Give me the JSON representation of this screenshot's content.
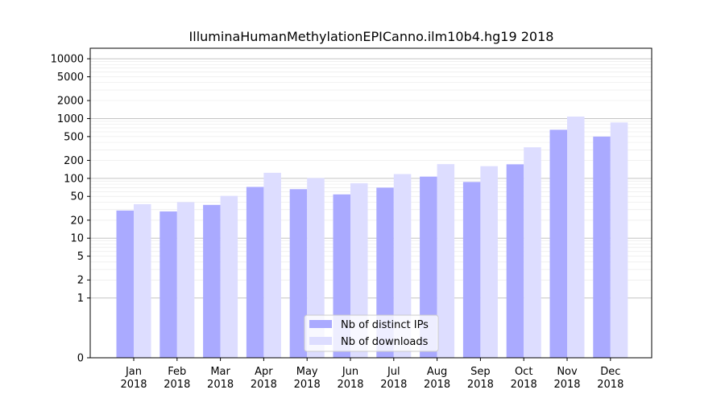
{
  "chart_data": {
    "type": "bar",
    "title": "IlluminaHumanMethylationEPICanno.ilm10b4.hg19 2018",
    "xlabel": "",
    "ylabel": "",
    "yscale": "symlog",
    "categories": [
      {
        "month": "Jan",
        "year": "2018"
      },
      {
        "month": "Feb",
        "year": "2018"
      },
      {
        "month": "Mar",
        "year": "2018"
      },
      {
        "month": "Apr",
        "year": "2018"
      },
      {
        "month": "May",
        "year": "2018"
      },
      {
        "month": "Jun",
        "year": "2018"
      },
      {
        "month": "Jul",
        "year": "2018"
      },
      {
        "month": "Aug",
        "year": "2018"
      },
      {
        "month": "Sep",
        "year": "2018"
      },
      {
        "month": "Oct",
        "year": "2018"
      },
      {
        "month": "Nov",
        "year": "2018"
      },
      {
        "month": "Dec",
        "year": "2018"
      }
    ],
    "series": [
      {
        "name": "Nb of distinct IPs",
        "color": "#aaaaff",
        "values": [
          29,
          28,
          36,
          72,
          66,
          54,
          70,
          107,
          87,
          172,
          650,
          500
        ]
      },
      {
        "name": "Nb of downloads",
        "color": "#ddddff",
        "values": [
          37,
          40,
          51,
          124,
          101,
          83,
          118,
          173,
          160,
          331,
          1080,
          860
        ]
      }
    ],
    "yticks": [
      0,
      1,
      2,
      5,
      10,
      20,
      50,
      100,
      200,
      500,
      1000,
      2000,
      5000,
      10000
    ],
    "ylim": [
      0,
      15000
    ],
    "grid": true,
    "legend_placement": "lower-center"
  }
}
